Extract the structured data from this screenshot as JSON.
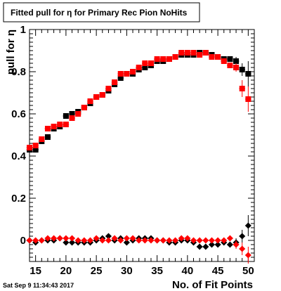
{
  "title": "Fitted pull for  η for Primary Rec Pion NoHits",
  "timestamp": "Sat Sep  9 11:34:43 2017",
  "chart_data": {
    "type": "scatter",
    "title": "Fitted pull for  η for Primary Rec Pion NoHits",
    "xlabel": "No. of Fit Points",
    "ylabel": "pull for  η",
    "xlim": [
      14,
      51
    ],
    "ylim": [
      -0.1,
      1.0
    ],
    "x_ticks": [
      15,
      20,
      25,
      30,
      35,
      40,
      45,
      50
    ],
    "y_ticks": [
      0,
      0.2,
      0.4,
      0.6,
      0.8,
      1
    ],
    "y_tick_labels": [
      "0",
      "0.2",
      "0.4",
      "0.6",
      "0.8",
      "1"
    ],
    "grid": false,
    "legend": "none",
    "x": [
      14,
      15,
      16,
      17,
      18,
      19,
      20,
      21,
      22,
      23,
      24,
      25,
      26,
      27,
      28,
      29,
      30,
      31,
      32,
      33,
      34,
      35,
      36,
      37,
      38,
      39,
      40,
      41,
      42,
      43,
      44,
      45,
      46,
      47,
      48,
      49,
      50
    ],
    "series": [
      {
        "color": "#000000",
        "marker": "square",
        "values": [
          0.43,
          0.43,
          0.47,
          0.49,
          0.53,
          0.54,
          0.59,
          0.6,
          0.61,
          0.63,
          0.65,
          0.68,
          0.69,
          0.71,
          0.74,
          0.77,
          0.79,
          0.79,
          0.81,
          0.82,
          0.83,
          0.85,
          0.85,
          0.86,
          0.87,
          0.88,
          0.88,
          0.88,
          0.89,
          0.89,
          0.88,
          0.87,
          0.86,
          0.86,
          0.85,
          0.81,
          0.79
        ],
        "errors": [
          0.01,
          0.01,
          0.01,
          0.01,
          0.01,
          0.01,
          0.01,
          0.01,
          0.01,
          0.01,
          0.01,
          0.01,
          0.01,
          0.01,
          0.01,
          0.01,
          0.01,
          0.01,
          0.01,
          0.01,
          0.01,
          0.01,
          0.01,
          0.01,
          0.01,
          0.01,
          0.01,
          0.01,
          0.01,
          0.01,
          0.01,
          0.01,
          0.01,
          0.01,
          0.02,
          0.03,
          0.06
        ]
      },
      {
        "color": "#ff0000",
        "marker": "square",
        "values": [
          0.44,
          0.45,
          0.48,
          0.53,
          0.54,
          0.55,
          0.55,
          0.58,
          0.6,
          0.63,
          0.66,
          0.68,
          0.69,
          0.72,
          0.75,
          0.79,
          0.79,
          0.8,
          0.82,
          0.84,
          0.84,
          0.86,
          0.86,
          0.86,
          0.87,
          0.89,
          0.89,
          0.89,
          0.88,
          0.89,
          0.87,
          0.87,
          0.85,
          0.83,
          0.82,
          0.72,
          0.67
        ],
        "errors": [
          0.01,
          0.01,
          0.01,
          0.01,
          0.01,
          0.01,
          0.01,
          0.01,
          0.01,
          0.01,
          0.01,
          0.01,
          0.01,
          0.01,
          0.01,
          0.01,
          0.01,
          0.01,
          0.01,
          0.01,
          0.01,
          0.01,
          0.01,
          0.01,
          0.01,
          0.01,
          0.01,
          0.01,
          0.01,
          0.01,
          0.01,
          0.01,
          0.01,
          0.01,
          0.02,
          0.04,
          0.06
        ]
      },
      {
        "color": "#000000",
        "marker": "diamond",
        "values": [
          0.0,
          -0.01,
          0.0,
          0.0,
          0.0,
          0.01,
          -0.01,
          -0.01,
          -0.01,
          -0.01,
          -0.01,
          0.0,
          0.01,
          0.02,
          0.0,
          0.01,
          -0.01,
          0.0,
          0.01,
          0.01,
          0.01,
          0.0,
          0.0,
          -0.01,
          -0.01,
          0.0,
          0.0,
          -0.01,
          -0.03,
          -0.03,
          -0.02,
          -0.02,
          -0.01,
          -0.02,
          -0.01,
          0.02,
          0.07
        ],
        "errors": [
          0.01,
          0.01,
          0.01,
          0.01,
          0.01,
          0.01,
          0.01,
          0.01,
          0.01,
          0.01,
          0.01,
          0.01,
          0.01,
          0.01,
          0.01,
          0.01,
          0.01,
          0.01,
          0.01,
          0.01,
          0.01,
          0.01,
          0.01,
          0.01,
          0.01,
          0.01,
          0.01,
          0.01,
          0.01,
          0.01,
          0.01,
          0.01,
          0.01,
          0.01,
          0.02,
          0.03,
          0.05
        ]
      },
      {
        "color": "#ff0000",
        "marker": "diamond",
        "values": [
          0.0,
          0.0,
          0.0,
          0.01,
          0.01,
          0.01,
          0.01,
          0.01,
          0.0,
          0.0,
          0.0,
          0.01,
          0.0,
          0.0,
          0.01,
          0.0,
          0.01,
          0.01,
          0.0,
          0.0,
          0.0,
          0.0,
          0.0,
          0.0,
          0.0,
          0.01,
          0.01,
          0.0,
          0.0,
          0.0,
          0.0,
          0.0,
          0.0,
          0.01,
          -0.02,
          -0.04,
          -0.07
        ],
        "errors": [
          0.01,
          0.01,
          0.01,
          0.01,
          0.01,
          0.01,
          0.01,
          0.01,
          0.01,
          0.01,
          0.01,
          0.01,
          0.01,
          0.01,
          0.01,
          0.01,
          0.01,
          0.01,
          0.01,
          0.01,
          0.01,
          0.01,
          0.01,
          0.01,
          0.01,
          0.01,
          0.01,
          0.01,
          0.01,
          0.01,
          0.01,
          0.01,
          0.01,
          0.01,
          0.02,
          0.03,
          0.04
        ]
      }
    ]
  }
}
